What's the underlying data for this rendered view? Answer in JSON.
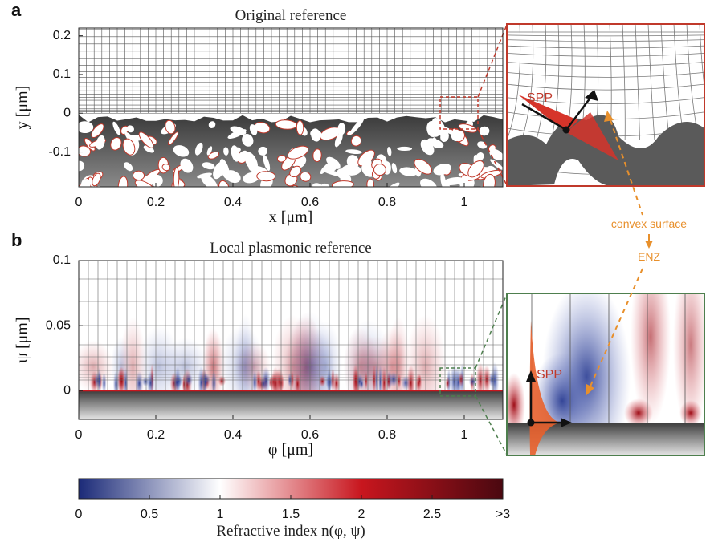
{
  "chart_data": [
    {
      "type": "mesh",
      "panel": "a",
      "title": "Original reference",
      "xlabel": "x [μm]",
      "ylabel": "y [μm]",
      "xlim": [
        0,
        1.1
      ],
      "ylim": [
        -0.19,
        0.22
      ],
      "xticks": [
        0,
        0.2,
        0.4,
        0.6,
        0.8,
        1
      ],
      "yticks": [
        -0.1,
        0,
        0.1,
        0.2
      ],
      "annotations": [
        "SPP",
        "convex surface",
        "ENZ"
      ]
    },
    {
      "type": "field",
      "panel": "b",
      "title": "Local plasmonic reference",
      "xlabel": "φ [μm]",
      "ylabel": "ψ [μm]",
      "xlim": [
        0,
        1.1
      ],
      "ylim": [
        -0.022,
        0.1
      ],
      "xticks": [
        0,
        0.2,
        0.4,
        0.6,
        0.8,
        1
      ],
      "yticks": [
        0,
        0.05,
        0.1
      ],
      "annotations": [
        "SPP"
      ]
    },
    {
      "type": "colorbar",
      "xlabel": "Refractive index n(φ, ψ)",
      "xlim": [
        0,
        3
      ],
      "xticks": [
        0,
        0.5,
        1,
        1.5,
        2,
        2.5,
        {
          "value": 3,
          "label": ">3"
        }
      ],
      "colormap": [
        "#1b2a78",
        "#ffffff",
        "#c8161e",
        "#4a0810"
      ]
    }
  ]
}
